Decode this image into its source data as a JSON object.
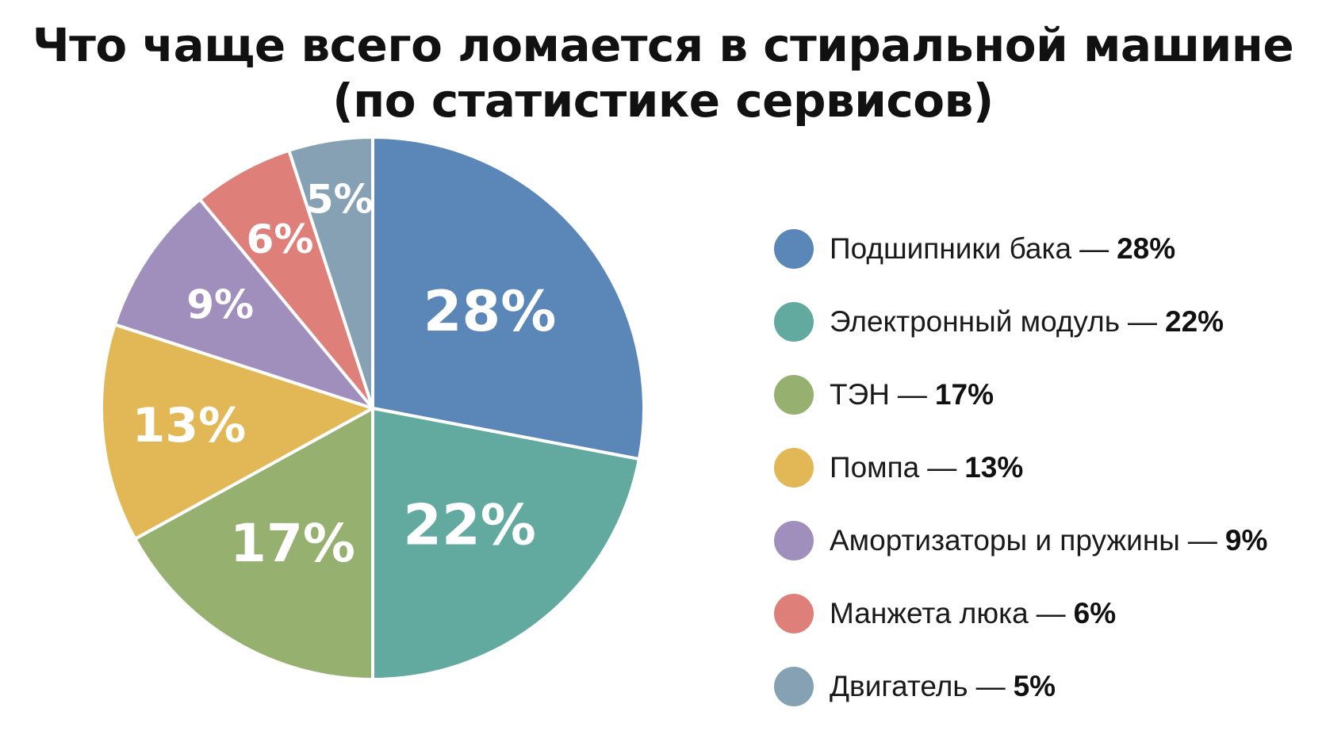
{
  "chart_data": {
    "type": "pie",
    "title": "Что чаще всего ломается в стиральной машине",
    "subtitle": "(по статистике сервисов)",
    "slices": [
      {
        "label": "Подшипники бака",
        "value": 28,
        "value_label": "28%",
        "color": "#5b86b8"
      },
      {
        "label": "Электронный модуль",
        "value": 22,
        "value_label": "22%",
        "color": "#62a9a0"
      },
      {
        "label": "ТЭН",
        "value": 17,
        "value_label": "17%",
        "color": "#96b070"
      },
      {
        "label": "Помпа",
        "value": 13,
        "value_label": "13%",
        "color": "#e2b857"
      },
      {
        "label": "Амортизаторы и пружины",
        "value": 9,
        "value_label": "9%",
        "color": "#a08fbc"
      },
      {
        "label": "Манжета люка",
        "value": 6,
        "value_label": "6%",
        "color": "#df7f7a"
      },
      {
        "label": "Двигатель",
        "value": 5,
        "value_label": "5%",
        "color": "#86a1b3"
      }
    ],
    "legend_separator": "—",
    "legend_position": "right"
  }
}
